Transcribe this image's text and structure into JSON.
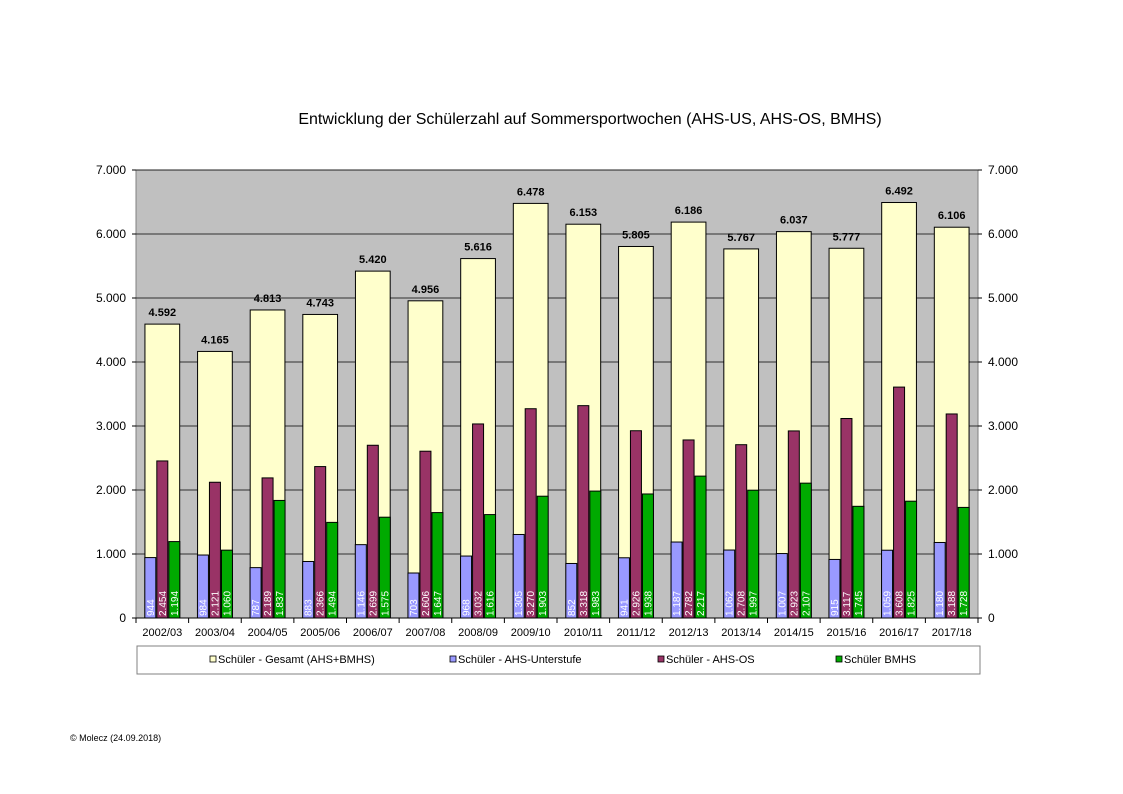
{
  "chart_data": {
    "type": "bar",
    "title": "Entwicklung der Schülerzahl auf Sommersportwochen (AHS-US,  AHS-OS, BMHS)",
    "categories": [
      "2002/03",
      "2003/04",
      "2004/05",
      "2005/06",
      "2006/07",
      "2007/08",
      "2008/09",
      "2009/10",
      "2010/11",
      "2011/12",
      "2012/13",
      "2013/14",
      "2014/15",
      "2015/16",
      "2016/17",
      "2017/18"
    ],
    "series": [
      {
        "name": "Schüler - Gesamt (AHS+BMHS)",
        "color": "#ffffcc",
        "values": [
          4592,
          4165,
          4813,
          4743,
          5420,
          4956,
          5616,
          6478,
          6153,
          5805,
          6186,
          5767,
          6037,
          5777,
          6492,
          6106
        ]
      },
      {
        "name": "Schüler - AHS-Unterstufe",
        "color": "#9999ff",
        "values": [
          944,
          984,
          787,
          883,
          1146,
          703,
          968,
          1305,
          852,
          941,
          1187,
          1062,
          1007,
          915,
          1059,
          1180
        ]
      },
      {
        "name": "Schüler - AHS-OS",
        "color": "#993366",
        "values": [
          2454,
          2121,
          2189,
          2366,
          2699,
          2606,
          3032,
          3270,
          3318,
          2926,
          2782,
          2708,
          2923,
          3117,
          3608,
          3188
        ]
      },
      {
        "name": "Schüler BMHS",
        "color": "#00aa00",
        "values": [
          1194,
          1060,
          1837,
          1494,
          1575,
          1647,
          1616,
          1903,
          1983,
          1938,
          2217,
          1997,
          2107,
          1745,
          1825,
          1728
        ]
      }
    ],
    "total_labels": [
      "4.592",
      "4.165",
      "4.813",
      "4.743",
      "5.420",
      "4.956",
      "5.616",
      "6.478",
      "6.153",
      "5.805",
      "6.186",
      "5.767",
      "6.037",
      "5.777",
      "6.492",
      "6.106"
    ],
    "bar_labels": {
      "us": [
        "944",
        "984",
        "787",
        "883",
        "1.146",
        "703",
        "968",
        "1.305",
        "852",
        "941",
        "1.187",
        "1.062",
        "1.007",
        "915",
        "1.059",
        "1.180"
      ],
      "os": [
        "2.454",
        "2.121",
        "2.189",
        "2.366",
        "2.699",
        "2.606",
        "3.032",
        "3.270",
        "3.318",
        "2.926",
        "2.782",
        "2.708",
        "2.923",
        "3.117",
        "3.608",
        "3.188"
      ],
      "bmhs": [
        "1.194",
        "1.060",
        "1.837",
        "1.494",
        "1.575",
        "1.647",
        "1.616",
        "1.903",
        "1.983",
        "1.938",
        "2.217",
        "1.997",
        "2.107",
        "1.745",
        "1.825",
        "1.728"
      ]
    },
    "ylim": [
      0,
      7000
    ],
    "yticks": [
      0,
      1000,
      2000,
      3000,
      4000,
      5000,
      6000,
      7000
    ],
    "ytick_labels": [
      "0",
      "1.000",
      "2.000",
      "3.000",
      "4.000",
      "5.000",
      "6.000",
      "7.000"
    ],
    "plot_background": "#c0c0c0",
    "legend_position": "bottom"
  },
  "footer": "© Molecz (24.09.2018)"
}
